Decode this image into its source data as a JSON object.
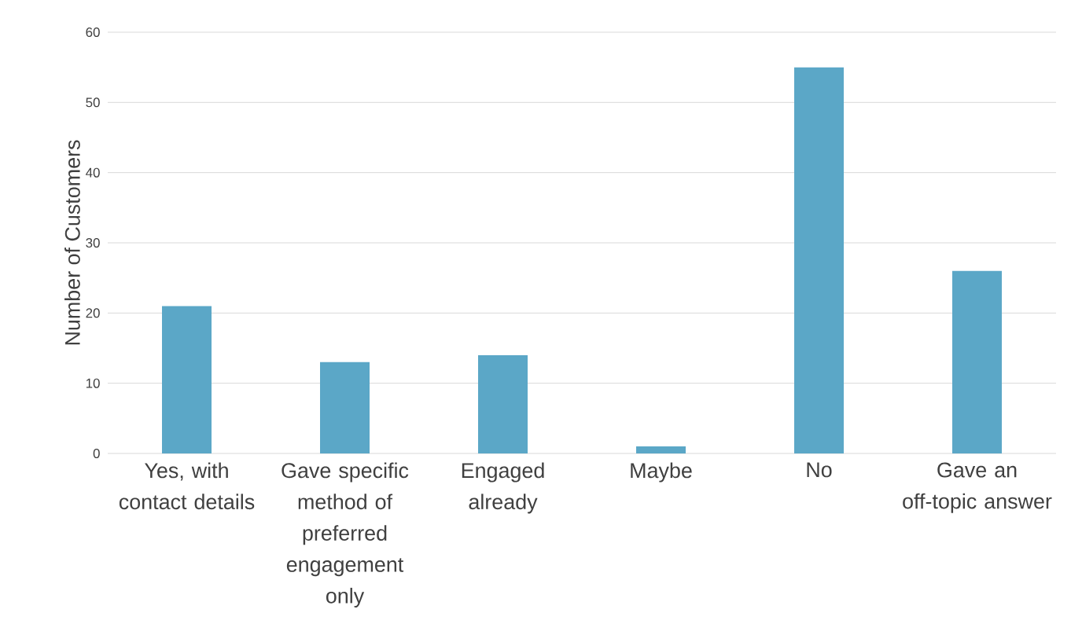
{
  "chart_data": {
    "type": "bar",
    "ylabel": "Number of Customers",
    "categories": [
      "Yes, with contact details",
      "Gave specific method of preferred engagement only",
      "Engaged already",
      "Maybe",
      "No",
      "Gave an off-topic answer"
    ],
    "values": [
      21,
      13,
      14,
      1,
      55,
      26
    ],
    "color": "#5ba7c7",
    "ylim": [
      0,
      60
    ],
    "yticks": [
      0,
      10,
      20,
      30,
      40,
      50,
      60
    ],
    "grid": "y"
  }
}
